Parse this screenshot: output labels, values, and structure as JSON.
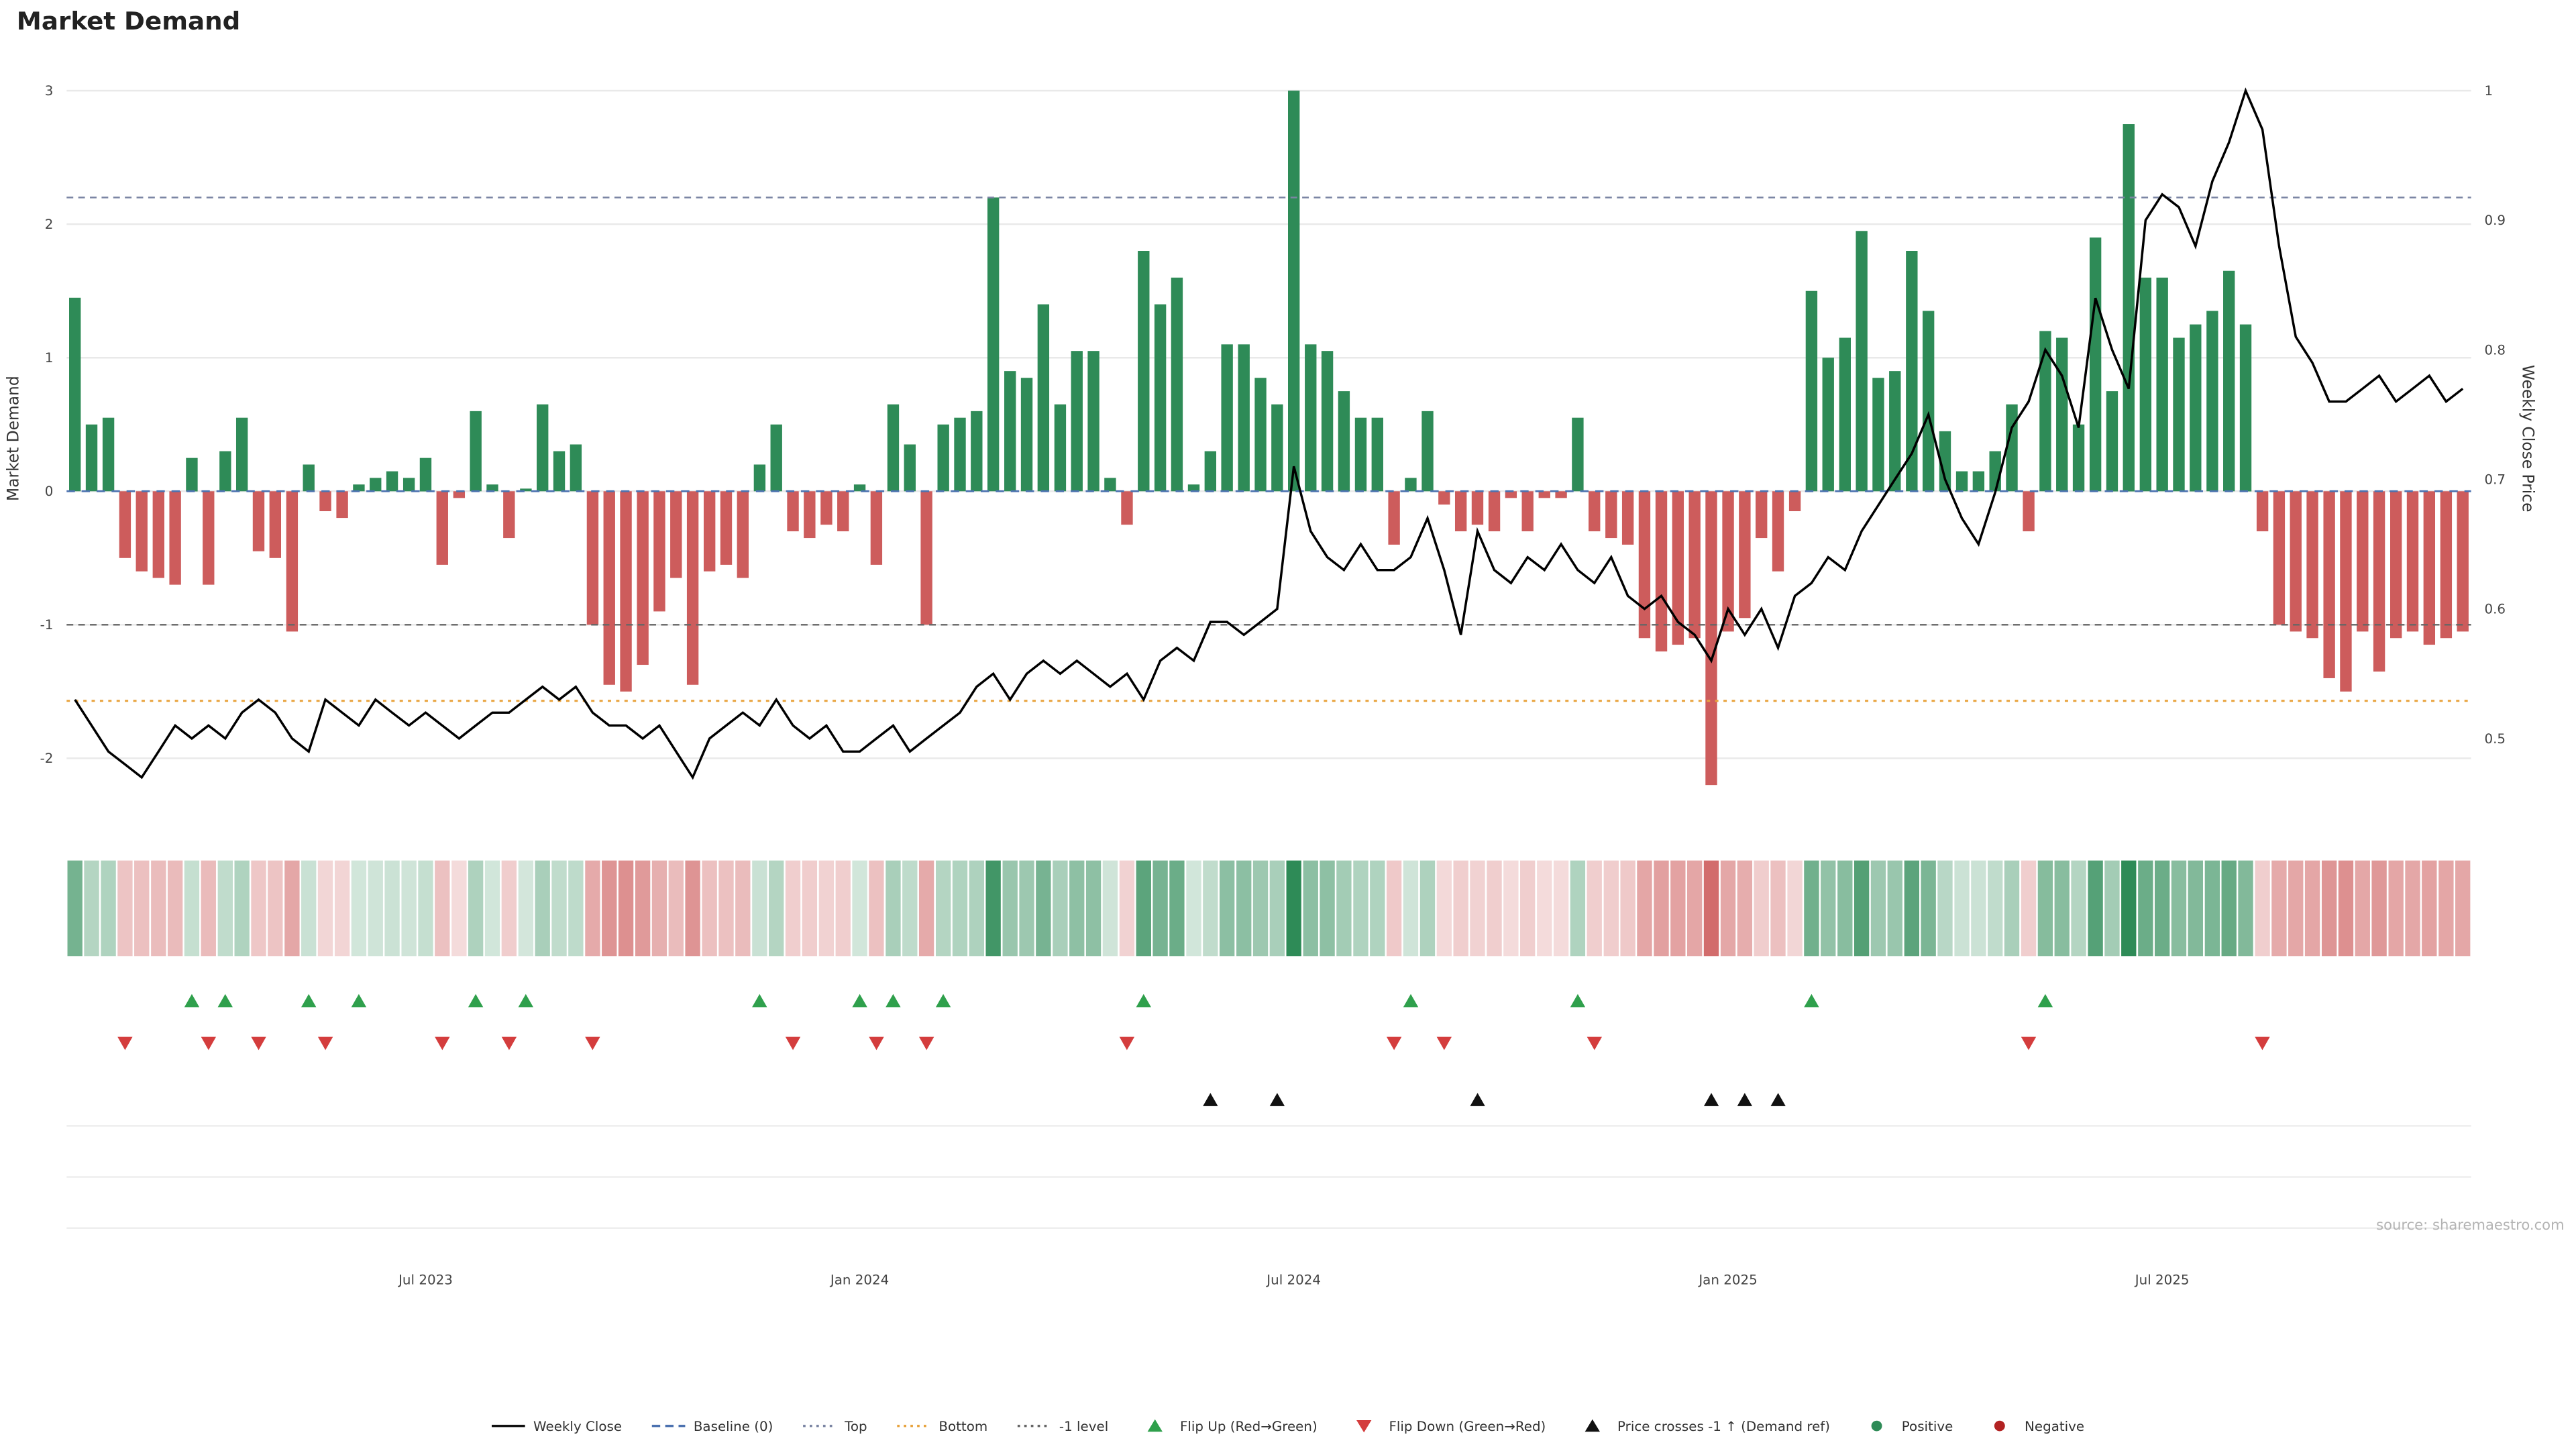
{
  "title": "Market Demand",
  "source": "source: sharemaestro.com",
  "colors": {
    "positive": "#2e8b57",
    "negative": "#cd5c5c",
    "price_line": "#000000",
    "baseline": "#4c72b0",
    "top_line": "#7b85a3",
    "bottom_line": "#e8a33d",
    "minus_one_line": "#666666",
    "flip_up": "#2fa04c",
    "flip_down": "#d43d3d",
    "price_cross": "#111111",
    "grid": "#e9e9e9"
  },
  "legend": [
    {
      "label": "Weekly Close",
      "glyph": "line",
      "color": "#111111"
    },
    {
      "label": "Baseline (0)",
      "glyph": "dashed",
      "color": "#4c72b0"
    },
    {
      "label": "Top",
      "glyph": "dotted",
      "color": "#7b85a3"
    },
    {
      "label": "Bottom",
      "glyph": "dotted",
      "color": "#e8a33d"
    },
    {
      "label": "-1 level",
      "glyph": "dotted",
      "color": "#666666"
    },
    {
      "label": "Flip Up (Red→Green)",
      "glyph": "tri-up",
      "color": "#2fa04c"
    },
    {
      "label": "Flip Down (Green→Red)",
      "glyph": "tri-down",
      "color": "#d43d3d"
    },
    {
      "label": "Price crosses -1 ↑ (Demand ref)",
      "glyph": "tri-up",
      "color": "#111111"
    },
    {
      "label": "Positive",
      "glyph": "dot",
      "color": "#2e8b57"
    },
    {
      "label": "Negative",
      "glyph": "dot",
      "color": "#b22222"
    }
  ],
  "chart_data": {
    "type": "bar+line",
    "title": "Market Demand",
    "x_unit": "week",
    "x_range": [
      "Feb 2023",
      "Nov 2025"
    ],
    "left_axis": {
      "label": "Market Demand",
      "ticks": [
        3,
        2,
        1,
        0,
        -1,
        -2
      ],
      "range": [
        -2.4,
        3.2
      ]
    },
    "right_axis": {
      "label": "Weekly Close Price",
      "ticks": [
        1,
        0.9,
        0.8,
        0.7,
        0.6,
        0.5
      ],
      "range": [
        0.45,
        1.02
      ]
    },
    "x_ticks": [
      "Jul 2023",
      "Jan 2024",
      "Jul 2024",
      "Jan 2025",
      "Jul 2025"
    ],
    "x_tick_idx": [
      21,
      47,
      73,
      99,
      125
    ],
    "reference_lines": {
      "baseline": 0,
      "top": 2.2,
      "bottom": -1.57,
      "minus_one": -1
    },
    "grid": true,
    "legend_position": "bottom-center",
    "demand": [
      1.45,
      0.5,
      0.55,
      -0.5,
      -0.6,
      -0.65,
      -0.7,
      0.25,
      -0.7,
      0.3,
      0.55,
      -0.45,
      -0.5,
      -1.05,
      0.2,
      -0.15,
      -0.2,
      0.05,
      0.1,
      0.15,
      0.1,
      0.25,
      -0.55,
      -0.05,
      0.6,
      0.05,
      -0.35,
      0.02,
      0.65,
      0.3,
      0.35,
      -1.0,
      -1.45,
      -1.5,
      -1.3,
      -0.9,
      -0.65,
      -1.45,
      -0.6,
      -0.55,
      -0.65,
      0.2,
      0.5,
      -0.3,
      -0.35,
      -0.25,
      -0.3,
      0.05,
      -0.55,
      0.65,
      0.35,
      -1.0,
      0.5,
      0.55,
      0.6,
      2.2,
      0.9,
      0.85,
      1.4,
      0.65,
      1.05,
      1.05,
      0.1,
      -0.25,
      1.8,
      1.4,
      1.6,
      0.05,
      0.3,
      1.1,
      1.1,
      0.85,
      0.65,
      3.0,
      1.1,
      1.05,
      0.75,
      0.55,
      0.55,
      -0.4,
      0.1,
      0.6,
      -0.1,
      -0.3,
      -0.25,
      -0.3,
      -0.05,
      -0.3,
      -0.05,
      -0.05,
      0.55,
      -0.3,
      -0.35,
      -0.4,
      -1.1,
      -1.2,
      -1.15,
      -1.1,
      -2.2,
      -1.05,
      -0.95,
      -0.35,
      -0.6,
      -0.15,
      1.5,
      1.0,
      1.15,
      1.95,
      0.85,
      0.9,
      1.8,
      1.35,
      0.45,
      0.15,
      0.15,
      0.3,
      0.65,
      -0.3,
      1.2,
      1.15,
      0.5,
      1.9,
      0.75,
      2.75,
      1.6,
      1.6,
      1.15,
      1.25,
      1.35,
      1.65,
      1.25,
      -0.3,
      -1.0,
      -1.05,
      -1.1,
      -1.4,
      -1.5,
      -1.05,
      -1.35,
      -1.1,
      -1.05,
      -1.15,
      -1.1,
      -1.05
    ],
    "price": [
      0.53,
      0.51,
      0.49,
      0.48,
      0.47,
      0.49,
      0.51,
      0.5,
      0.51,
      0.5,
      0.52,
      0.53,
      0.52,
      0.5,
      0.49,
      0.53,
      0.52,
      0.51,
      0.53,
      0.52,
      0.51,
      0.52,
      0.51,
      0.5,
      0.51,
      0.52,
      0.52,
      0.53,
      0.54,
      0.53,
      0.54,
      0.52,
      0.51,
      0.51,
      0.5,
      0.51,
      0.49,
      0.47,
      0.5,
      0.51,
      0.52,
      0.51,
      0.53,
      0.51,
      0.5,
      0.51,
      0.49,
      0.49,
      0.5,
      0.51,
      0.49,
      0.5,
      0.51,
      0.52,
      0.54,
      0.55,
      0.53,
      0.55,
      0.56,
      0.55,
      0.56,
      0.55,
      0.54,
      0.55,
      0.53,
      0.56,
      0.57,
      0.56,
      0.59,
      0.59,
      0.58,
      0.59,
      0.6,
      0.71,
      0.66,
      0.64,
      0.63,
      0.65,
      0.63,
      0.63,
      0.64,
      0.67,
      0.63,
      0.58,
      0.66,
      0.63,
      0.62,
      0.64,
      0.63,
      0.65,
      0.63,
      0.62,
      0.64,
      0.61,
      0.6,
      0.61,
      0.59,
      0.58,
      0.56,
      0.6,
      0.58,
      0.6,
      0.57,
      0.61,
      0.62,
      0.64,
      0.63,
      0.66,
      0.68,
      0.7,
      0.72,
      0.75,
      0.7,
      0.67,
      0.65,
      0.69,
      0.74,
      0.76,
      0.8,
      0.78,
      0.74,
      0.84,
      0.8,
      0.77,
      0.9,
      0.92,
      0.91,
      0.88,
      0.93,
      0.96,
      1.0,
      0.97,
      0.88,
      0.81,
      0.79,
      0.76,
      0.76,
      0.77,
      0.78,
      0.76,
      0.77,
      0.78,
      0.76,
      0.77
    ],
    "flip_up_idx": [
      7,
      9,
      14,
      17,
      24,
      27,
      41,
      47,
      49,
      52,
      64,
      80,
      90,
      104,
      118
    ],
    "flip_down_idx": [
      3,
      8,
      11,
      15,
      22,
      26,
      31,
      43,
      48,
      51,
      63,
      79,
      82,
      91,
      117,
      131
    ],
    "price_cross_idx": [
      68,
      72,
      84,
      98,
      100,
      102
    ]
  }
}
